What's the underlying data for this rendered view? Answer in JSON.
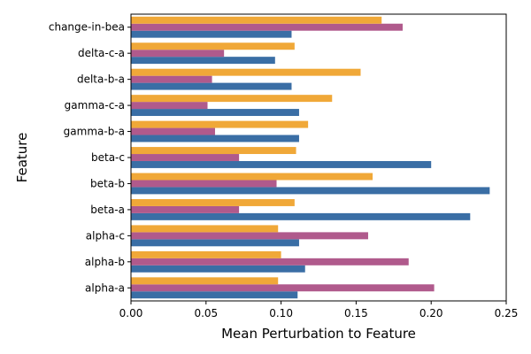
{
  "chart_data": {
    "type": "bar",
    "orientation": "horizontal",
    "title": "",
    "xlabel": "Mean Perturbation to Feature",
    "ylabel": "Feature",
    "xlim": [
      0,
      0.25
    ],
    "xticks": [
      "0.00",
      "0.05",
      "0.10",
      "0.15",
      "0.20",
      "0.25"
    ],
    "grid": false,
    "legend": "none",
    "categories": [
      "alpha-a",
      "alpha-b",
      "alpha-c",
      "beta-a",
      "beta-b",
      "beta-c",
      "gamma-b-a",
      "gamma-c-a",
      "delta-b-a",
      "delta-c-a",
      "change-in-bea"
    ],
    "series": [
      {
        "color": "#3a6ea5",
        "values": [
          0.111,
          0.116,
          0.112,
          0.226,
          0.239,
          0.2,
          0.112,
          0.112,
          0.107,
          0.096,
          0.107
        ]
      },
      {
        "color": "#b05a8c",
        "values": [
          0.202,
          0.185,
          0.158,
          0.072,
          0.097,
          0.072,
          0.056,
          0.051,
          0.054,
          0.062,
          0.181
        ]
      },
      {
        "color": "#f0a838",
        "values": [
          0.098,
          0.1,
          0.098,
          0.109,
          0.161,
          0.11,
          0.118,
          0.134,
          0.153,
          0.109,
          0.167
        ]
      }
    ]
  }
}
